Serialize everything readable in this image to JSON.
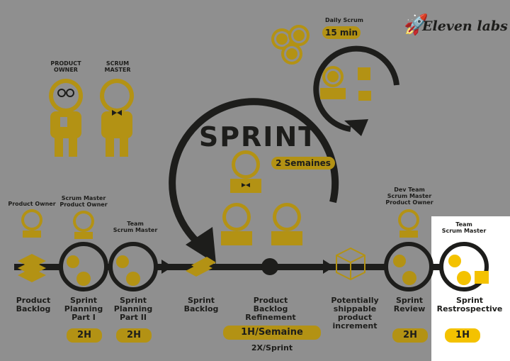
{
  "brand": {
    "logo_text": "Eleven labs",
    "logo_icon": "rocket-icon"
  },
  "colors": {
    "background": "#8f8f8f",
    "ink": "#1d1d1b",
    "gold_dim": "#b39214",
    "gold_bright": "#f4c200",
    "highlight": "#ffffff"
  },
  "top_roles": {
    "product_owner": "PRODUCT\nOWNER",
    "scrum_master": "SCRUM\nMASTER"
  },
  "daily": {
    "title": "Daily Scrum",
    "duration": "15 min"
  },
  "sprint": {
    "title": "SPRINT",
    "duration": "2 Semaines"
  },
  "stages": {
    "backlog": {
      "attendees": "Product Owner",
      "label": "Product\nBacklog"
    },
    "planning1": {
      "attendees": "Scrum Master\nProduct Owner",
      "label": "Sprint\nPlanning\nPart I",
      "time": "2H"
    },
    "planning2": {
      "attendees": "Team\nScrum Master",
      "label": "Sprint\nPlanning\nPart II",
      "time": "2H"
    },
    "sprint_backlog": {
      "label": "Sprint\nBacklog"
    },
    "refinement": {
      "label": "Product\nBacklog\nRefinement",
      "time": "1H/Semaine",
      "frequency": "2X/Sprint"
    },
    "increment": {
      "label": "Potentially\nshippable\nproduct increment"
    },
    "review": {
      "attendees": "Dev Team\nScrum Master\nProduct Owner",
      "label": "Sprint\nReview",
      "time": "2H"
    },
    "retro": {
      "attendees": "Team\nScrum Master",
      "label": "Sprint\nRestrospective",
      "time": "1H"
    }
  }
}
